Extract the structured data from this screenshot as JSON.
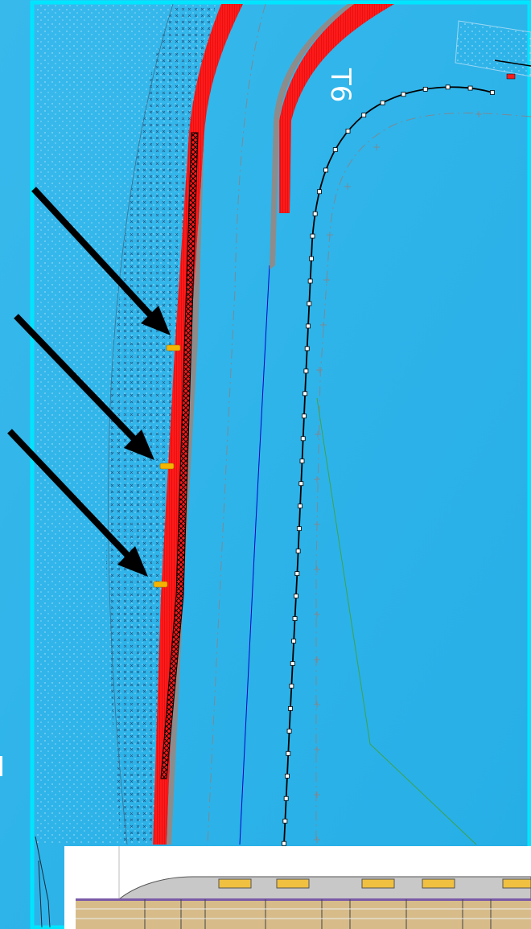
{
  "diagram": {
    "corner_label": "T6",
    "colors": {
      "background": "#2fb4e9",
      "frame": "#00e5ff",
      "barrier": "#ff1a1a",
      "kerb_grey": "#8c8c8c",
      "marker": "#f4b400",
      "arrow": "#000000",
      "racing_line": "#0000cc",
      "green_line": "#3fa24a",
      "inset_track": "#d7bc8a"
    },
    "markers": [
      {
        "name": "marker-1"
      },
      {
        "name": "marker-2"
      },
      {
        "name": "marker-3"
      }
    ],
    "arrows": [
      {
        "name": "arrow-to-marker-1"
      },
      {
        "name": "arrow-to-marker-2"
      },
      {
        "name": "arrow-to-marker-3"
      }
    ]
  }
}
